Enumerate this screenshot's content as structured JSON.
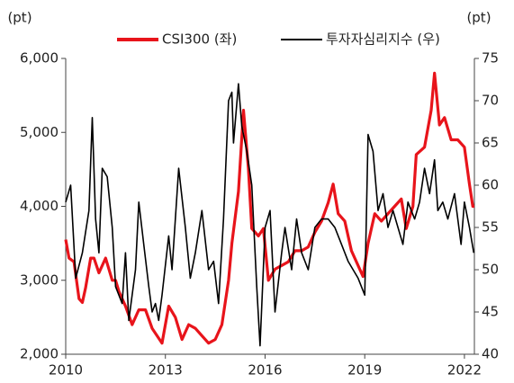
{
  "chart_data": {
    "type": "line",
    "ylabel": "(pt)",
    "y2label": "(pt)",
    "xlim": [
      2010,
      2022.3
    ],
    "xticks": [
      2010,
      2013,
      2016,
      2019,
      2022
    ],
    "ylim": [
      2000,
      6000
    ],
    "yticks": [
      {
        "value": 2000,
        "label": "2,000"
      },
      {
        "value": 3000,
        "label": "3,000"
      },
      {
        "value": 4000,
        "label": "4,000"
      },
      {
        "value": 5000,
        "label": "5,000"
      },
      {
        "value": 6000,
        "label": "6,000"
      }
    ],
    "y2lim": [
      40,
      75
    ],
    "y2ticks": [
      40,
      45,
      50,
      55,
      60,
      65,
      70,
      75
    ],
    "legend": "top",
    "series": [
      {
        "name": "CSI300 (좌)",
        "color": "#e8141b",
        "axis": "y",
        "x": [
          2010.0,
          2010.1,
          2010.25,
          2010.4,
          2010.5,
          2010.6,
          2010.75,
          2010.85,
          2011.0,
          2011.2,
          2011.4,
          2011.5,
          2011.6,
          2011.8,
          2012.0,
          2012.2,
          2012.4,
          2012.6,
          2012.9,
          2013.1,
          2013.3,
          2013.5,
          2013.7,
          2013.9,
          2014.1,
          2014.3,
          2014.5,
          2014.7,
          2014.9,
          2015.0,
          2015.2,
          2015.35,
          2015.5,
          2015.6,
          2015.8,
          2015.95,
          2016.1,
          2016.3,
          2016.5,
          2016.7,
          2016.9,
          2017.1,
          2017.3,
          2017.5,
          2017.7,
          2017.9,
          2018.05,
          2018.2,
          2018.4,
          2018.6,
          2018.8,
          2018.95,
          2019.1,
          2019.3,
          2019.5,
          2019.7,
          2019.9,
          2020.1,
          2020.25,
          2020.45,
          2020.55,
          2020.8,
          2021.0,
          2021.1,
          2021.25,
          2021.4,
          2021.6,
          2021.8,
          2022.0,
          2022.15,
          2022.25,
          2022.3
        ],
        "values": [
          3550,
          3300,
          3250,
          2750,
          2700,
          2900,
          3300,
          3300,
          3100,
          3300,
          3000,
          3000,
          2850,
          2650,
          2400,
          2600,
          2600,
          2350,
          2150,
          2650,
          2500,
          2200,
          2400,
          2350,
          2250,
          2150,
          2200,
          2400,
          3000,
          3500,
          4200,
          5300,
          4500,
          3700,
          3600,
          3700,
          3000,
          3150,
          3200,
          3250,
          3400,
          3400,
          3450,
          3650,
          3800,
          4050,
          4300,
          3900,
          3800,
          3400,
          3200,
          3050,
          3500,
          3900,
          3800,
          3900,
          4000,
          4100,
          3700,
          4000,
          4700,
          4800,
          5300,
          5800,
          5100,
          5200,
          4900,
          4900,
          4800,
          4300,
          4000,
          4000
        ]
      },
      {
        "name": "투자자심리지수 (우)",
        "color": "#000000",
        "axis": "y2",
        "x": [
          2010.0,
          2010.15,
          2010.3,
          2010.5,
          2010.7,
          2010.8,
          2010.9,
          2011.0,
          2011.1,
          2011.25,
          2011.4,
          2011.5,
          2011.7,
          2011.8,
          2011.9,
          2012.1,
          2012.2,
          2012.35,
          2012.5,
          2012.6,
          2012.7,
          2012.8,
          2012.9,
          2013.1,
          2013.2,
          2013.4,
          2013.6,
          2013.75,
          2013.9,
          2014.1,
          2014.3,
          2014.45,
          2014.6,
          2014.75,
          2014.9,
          2015.0,
          2015.05,
          2015.2,
          2015.3,
          2015.45,
          2015.6,
          2015.75,
          2015.85,
          2016.0,
          2016.15,
          2016.3,
          2016.5,
          2016.6,
          2016.8,
          2016.95,
          2017.1,
          2017.3,
          2017.5,
          2017.7,
          2017.9,
          2018.1,
          2018.3,
          2018.5,
          2018.8,
          2019.0,
          2019.1,
          2019.25,
          2019.4,
          2019.55,
          2019.7,
          2019.85,
          2020.0,
          2020.15,
          2020.3,
          2020.5,
          2020.65,
          2020.8,
          2020.95,
          2021.1,
          2021.2,
          2021.35,
          2021.5,
          2021.7,
          2021.9,
          2022.0,
          2022.15,
          2022.28
        ],
        "values": [
          58,
          60,
          49,
          52,
          57,
          68,
          56,
          52,
          62,
          61,
          55,
          48,
          46,
          52,
          44,
          50,
          58,
          53,
          48,
          45,
          46,
          44,
          47,
          54,
          50,
          62,
          55,
          49,
          52,
          57,
          50,
          51,
          46,
          56,
          70,
          71,
          65,
          72,
          67,
          64,
          60,
          48,
          41,
          55,
          57,
          45,
          52,
          55,
          50,
          56,
          52,
          50,
          55,
          56,
          56,
          55,
          53,
          51,
          49,
          47,
          66,
          64,
          57,
          59,
          55,
          57,
          55,
          53,
          58,
          56,
          58,
          62,
          59,
          63,
          57,
          58,
          56,
          59,
          53,
          58,
          55,
          52
        ]
      }
    ]
  }
}
